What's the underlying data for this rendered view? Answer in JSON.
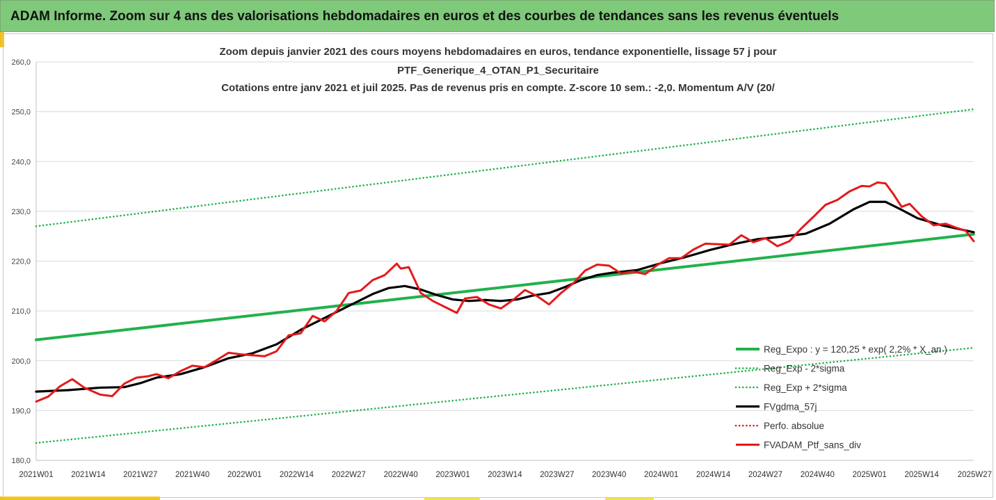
{
  "header": {
    "title": "ADAM Informe. Zoom sur 4 ans des valorisations hebdomadaires en euros et des courbes de tendances sans les revenus éventuels"
  },
  "chart_data": {
    "type": "line",
    "title_lines": [
      "Zoom depuis janvier 2021 des cours moyens hebdomadaires  en euros, tendance exponentielle, lissage 57 j pour",
      "PTF_Generique_4_OTAN_P1_Securitaire",
      "Cotations entre janv 2021 et juil 2025. Pas de revenus pris en compte. Z-score 10 sem.: -2,0. Momentum A/V (20/"
    ],
    "xlabel": "",
    "ylabel": "",
    "ylim": [
      180,
      260
    ],
    "y_ticks": [
      "180,0",
      "190,0",
      "200,0",
      "210,0",
      "220,0",
      "230,0",
      "240,0",
      "250,0",
      "260,0"
    ],
    "x_ticks": [
      "2021W01",
      "2021W14",
      "2021W27",
      "2021W40",
      "2022W01",
      "2022W14",
      "2022W27",
      "2022W40",
      "2023W01",
      "2023W14",
      "2023W27",
      "2023W40",
      "2024W01",
      "2024W14",
      "2024W27",
      "2024W40",
      "2025W01",
      "2025W14",
      "2025W27"
    ],
    "x_tick_index": [
      0,
      13,
      26,
      39,
      52,
      65,
      78,
      91,
      104,
      117,
      130,
      143,
      156,
      169,
      182,
      195,
      208,
      221,
      234
    ],
    "grid": "horizontal",
    "legend_position": "bottom-right",
    "series": [
      {
        "name": "Reg_Expo : y = 120,25 * exp( 2,2% * X_an )",
        "style": "solid",
        "color": "#22b14c",
        "x": [
          0,
          234
        ],
        "values": [
          204.2,
          225.4
        ]
      },
      {
        "name": "Reg_Exp - 2*sigma",
        "style": "dotted",
        "color": "#22b14c",
        "x": [
          0,
          234
        ],
        "values": [
          183.5,
          202.6
        ]
      },
      {
        "name": "Reg_Exp + 2*sigma",
        "style": "dotted",
        "color": "#22b14c",
        "x": [
          0,
          234
        ],
        "values": [
          227.0,
          250.5
        ]
      },
      {
        "name": "FVgdma_57j",
        "style": "solid",
        "color": "#000000",
        "x": [
          0,
          8,
          16,
          22,
          26,
          30,
          36,
          42,
          48,
          54,
          60,
          66,
          72,
          78,
          84,
          88,
          92,
          96,
          100,
          104,
          108,
          112,
          116,
          120,
          124,
          128,
          132,
          136,
          140,
          144,
          150,
          156,
          162,
          168,
          174,
          180,
          186,
          192,
          198,
          204,
          208,
          212,
          216,
          220,
          226,
          234
        ],
        "values": [
          193.8,
          194.1,
          194.6,
          194.7,
          195.5,
          196.6,
          197.3,
          198.7,
          200.5,
          201.5,
          203.3,
          206.2,
          208.6,
          211.0,
          213.4,
          214.6,
          215.0,
          214.3,
          213.2,
          212.3,
          212.0,
          212.2,
          212.0,
          212.3,
          213.1,
          213.6,
          214.8,
          216.2,
          217.2,
          217.7,
          218.2,
          219.6,
          220.8,
          222.2,
          223.4,
          224.4,
          224.9,
          225.5,
          227.5,
          230.4,
          231.9,
          231.9,
          230.3,
          228.6,
          227.2,
          225.8
        ]
      },
      {
        "name": "Perfo. absolue",
        "style": "dotted",
        "color": "#e3191b",
        "x": [],
        "values": []
      },
      {
        "name": "FVADAM_Ptf_sans_div",
        "style": "solid",
        "color": "#e3191b",
        "x": [
          0,
          3,
          6,
          9,
          12,
          16,
          19,
          22,
          25,
          28,
          30,
          33,
          36,
          39,
          42,
          45,
          48,
          51,
          54,
          57,
          60,
          63,
          66,
          69,
          72,
          75,
          78,
          81,
          84,
          87,
          90,
          91,
          93,
          96,
          99,
          102,
          105,
          107,
          110,
          113,
          116,
          119,
          122,
          125,
          128,
          131,
          134,
          137,
          140,
          143,
          146,
          149,
          152,
          155,
          158,
          161,
          164,
          167,
          170,
          173,
          176,
          179,
          182,
          185,
          188,
          191,
          194,
          197,
          200,
          203,
          206,
          208,
          210,
          212,
          214,
          216,
          218,
          221,
          224,
          227,
          230,
          232,
          234
        ],
        "values": [
          191.8,
          192.8,
          194.9,
          196.3,
          194.6,
          193.2,
          192.9,
          195.4,
          196.6,
          196.9,
          197.3,
          196.5,
          197.9,
          199.0,
          198.7,
          200.1,
          201.6,
          201.3,
          201.1,
          200.9,
          201.9,
          205.1,
          205.5,
          209.0,
          207.9,
          210.0,
          213.6,
          214.1,
          216.2,
          217.2,
          219.5,
          218.5,
          218.8,
          213.6,
          212.0,
          210.8,
          209.6,
          212.5,
          212.8,
          211.3,
          210.5,
          212.2,
          214.2,
          213.0,
          211.3,
          213.6,
          215.5,
          218.1,
          219.3,
          219.1,
          217.5,
          217.9,
          217.4,
          219.2,
          220.6,
          220.6,
          222.3,
          223.5,
          223.4,
          223.3,
          225.2,
          223.8,
          224.6,
          223.0,
          224.0,
          226.6,
          228.9,
          231.3,
          232.3,
          234.0,
          235.1,
          235.0,
          235.8,
          235.6,
          233.4,
          230.9,
          231.5,
          229.0,
          227.2,
          227.5,
          226.6,
          226.1,
          224.0
        ]
      }
    ]
  }
}
